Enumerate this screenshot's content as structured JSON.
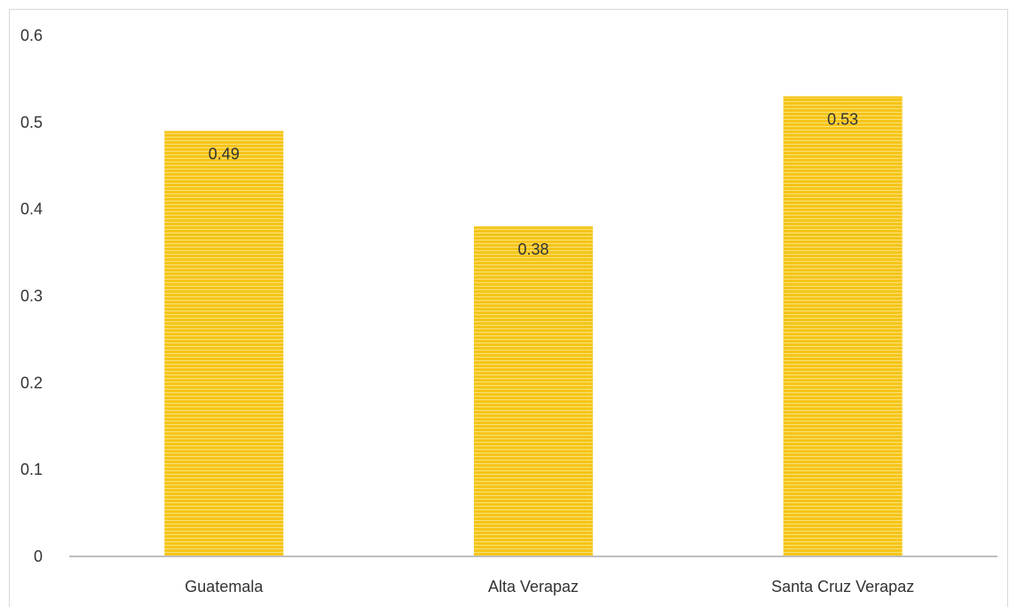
{
  "chart_data": {
    "type": "bar",
    "categories": [
      "Guatemala",
      "Alta Verapaz",
      "Santa Cruz Verapaz"
    ],
    "values": [
      0.49,
      0.38,
      0.53
    ],
    "data_labels": [
      "0.49",
      "0.38",
      "0.53"
    ],
    "y_ticks": [
      0,
      0.1,
      0.2,
      0.3,
      0.4,
      0.5,
      0.6
    ],
    "y_tick_labels": [
      "0",
      "0.1",
      "0.2",
      "0.3",
      "0.4",
      "0.5",
      "0.6"
    ],
    "ylim": [
      0,
      0.6
    ],
    "grid": false,
    "legend": "none",
    "bar_color": "#f5c518",
    "bar_stripe_color": "#fbe07a",
    "axis_color": "#bfbfbf"
  }
}
